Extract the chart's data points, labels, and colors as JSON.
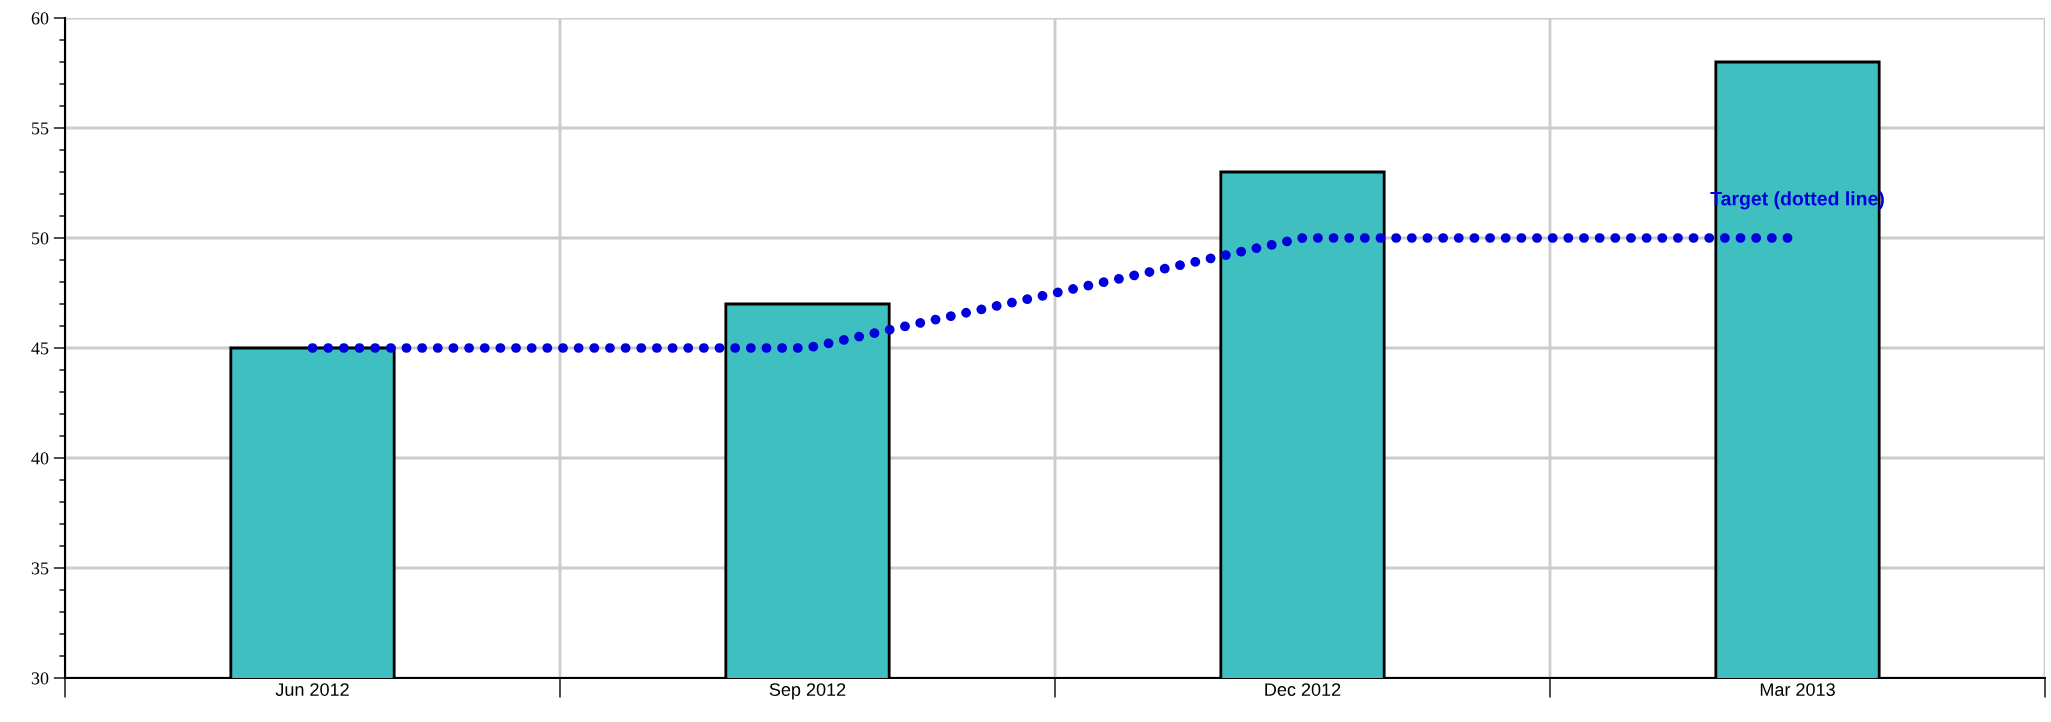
{
  "chart_data": {
    "type": "bar",
    "categories": [
      "Jun 2012",
      "Sep 2012",
      "Dec 2012",
      "Mar 2013"
    ],
    "series": [
      {
        "color": "#40bfc1",
        "values": [
          45,
          47,
          53,
          58
        ]
      },
      {
        "type": "line",
        "color": "#0000dd",
        "line_style": "dotted",
        "values": [
          45,
          45,
          50,
          50
        ]
      }
    ],
    "ylim": [
      30,
      60
    ],
    "yticks": [
      30,
      35,
      40,
      45,
      50,
      55,
      60
    ],
    "grid": true,
    "annotations": [
      "Target (dotted line)"
    ]
  }
}
